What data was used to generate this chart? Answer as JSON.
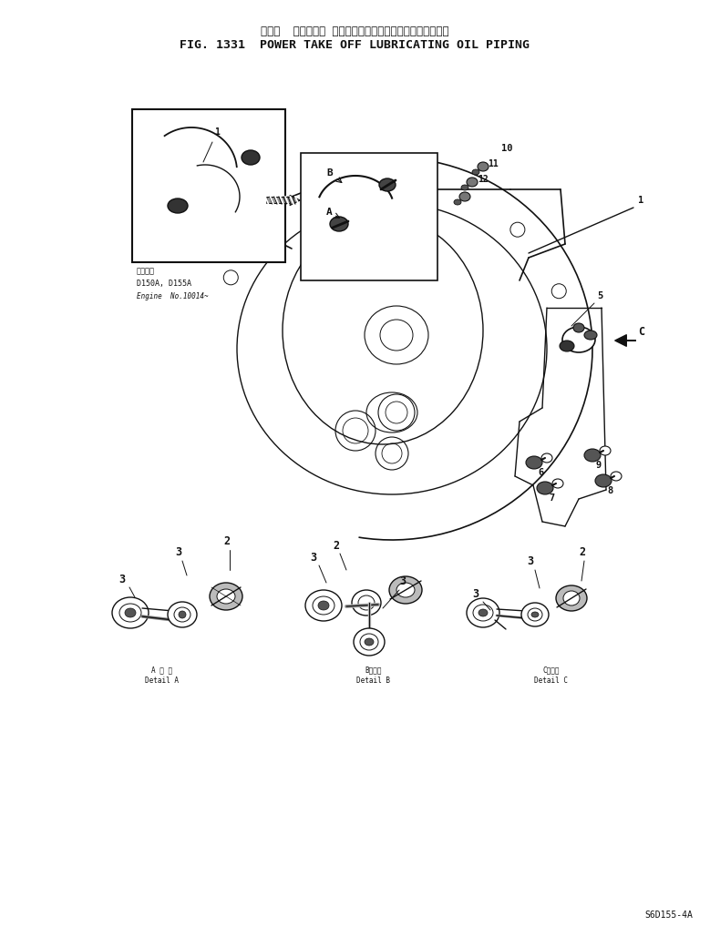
{
  "title_japanese": "パワー  テークオフ ルーブリケーティングオイルパイピング",
  "title_english": "FIG. 1331  POWER TAKE OFF LUBRICATING OIL PIPING",
  "footer": "S6D155-4A",
  "bg_color": "#ffffff",
  "ink": "#111111",
  "inset_label": "適用号機",
  "inset_line2": "D150A, D155A",
  "inset_line3": "Engine  No.10014~",
  "detail_A_ja": "A 部 詳",
  "detail_A_en": "Detail A",
  "detail_B_ja": "B部詳細",
  "detail_B_en": "Detail B",
  "detail_C_ja": "C部詳細",
  "detail_C_en": "Detail C"
}
